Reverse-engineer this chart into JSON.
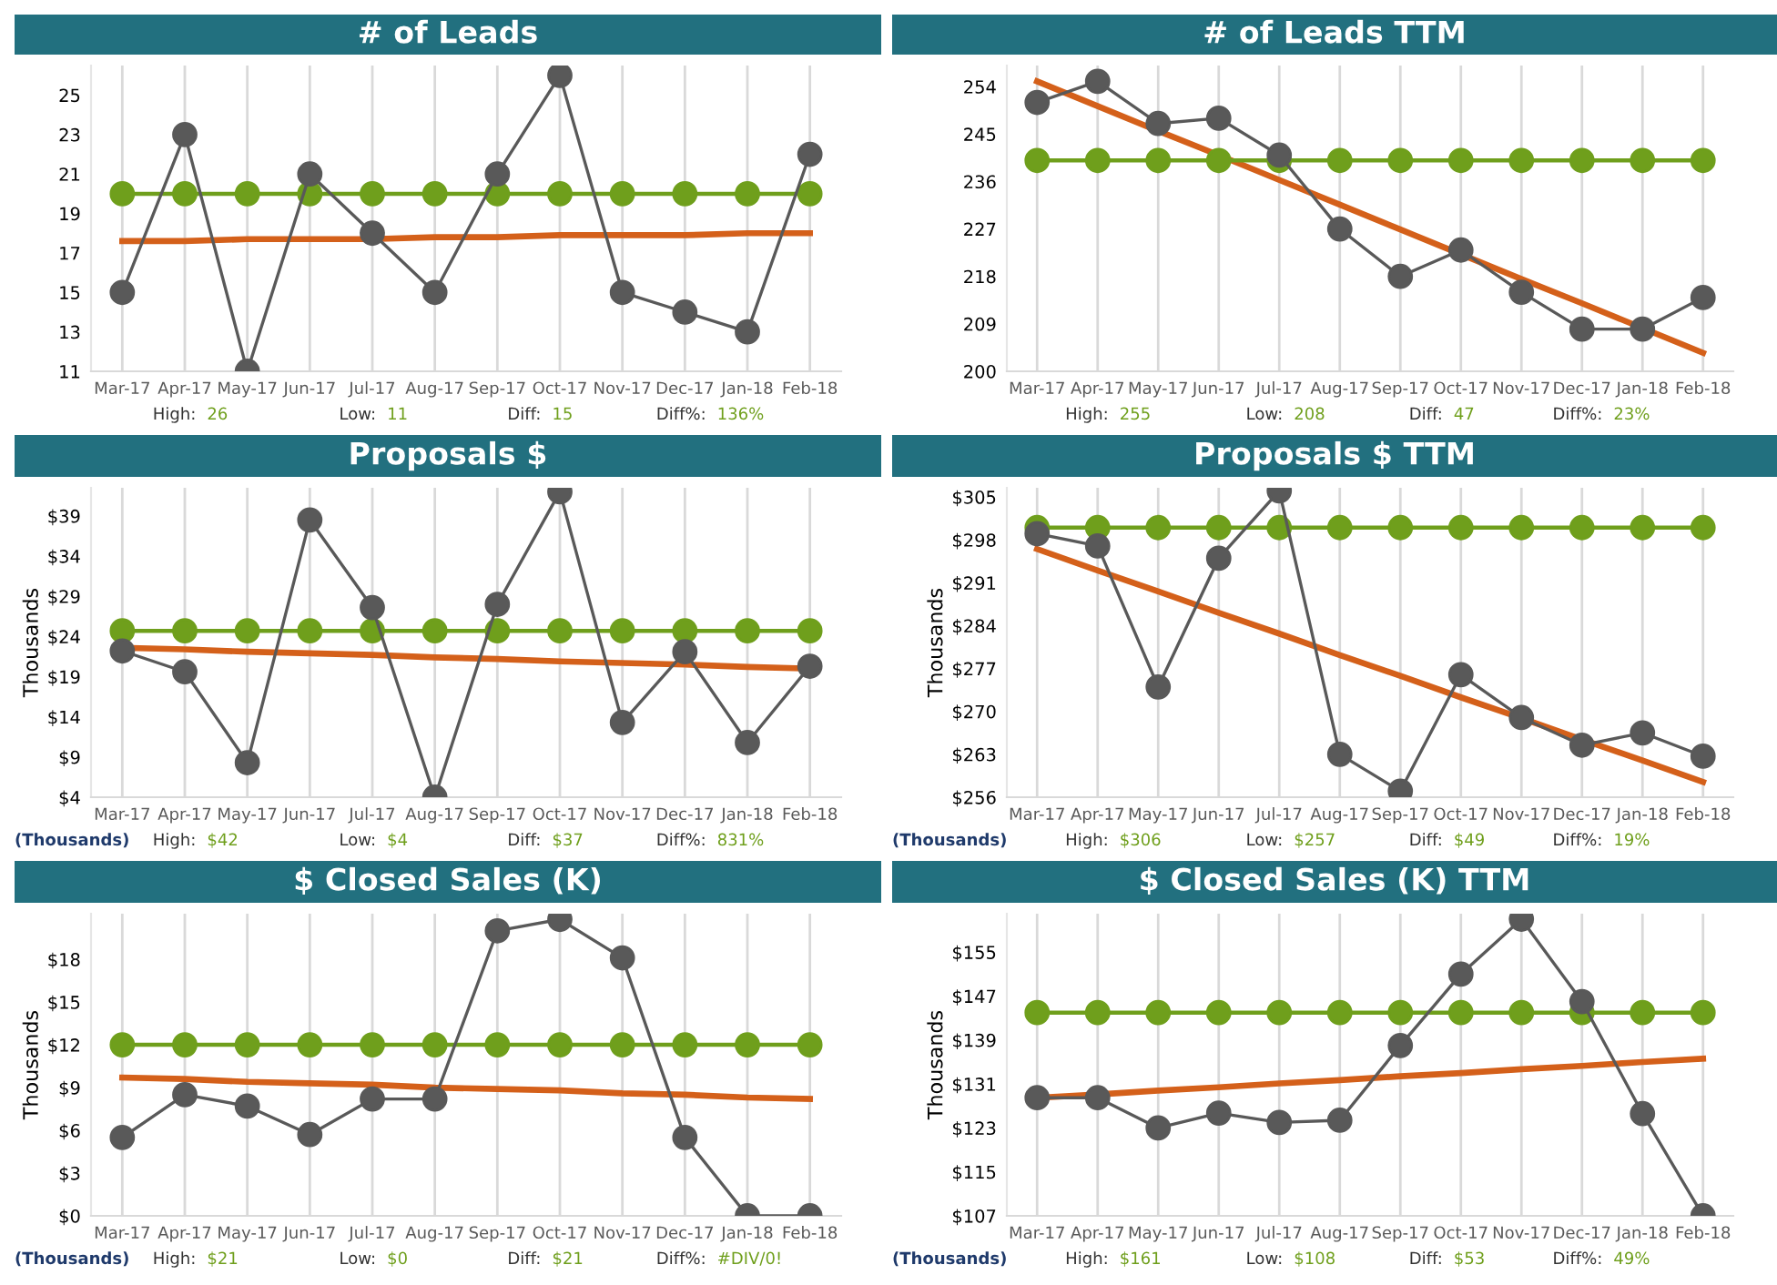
{
  "chart_data": [
    {
      "type": "line",
      "title": "# of Leads",
      "categories": [
        "Mar-17",
        "Apr-17",
        "May-17",
        "Jun-17",
        "Jul-17",
        "Aug-17",
        "Sep-17",
        "Oct-17",
        "Nov-17",
        "Dec-17",
        "Jan-18",
        "Feb-18"
      ],
      "series": [
        {
          "color": "#595959",
          "marker": "circle",
          "values": [
            15,
            23,
            11,
            21,
            18,
            15,
            21,
            26,
            15,
            14,
            13,
            22
          ]
        },
        {
          "color": "#6f9f1c",
          "marker": "circle",
          "values": [
            20,
            20,
            20,
            20,
            20,
            20,
            20,
            20,
            20,
            20,
            20,
            20
          ]
        },
        {
          "type": "line",
          "color": "#d4601a",
          "marker": "none",
          "values": [
            17.6,
            17.6,
            17.7,
            17.7,
            17.7,
            17.8,
            17.8,
            17.9,
            17.9,
            17.9,
            18.0,
            18.0
          ]
        }
      ],
      "ylim": [
        11,
        26.5
      ],
      "yticks": [
        11,
        13,
        15,
        17,
        19,
        21,
        23,
        25
      ],
      "grid": "x",
      "annotations": [
        "High: 26",
        "Low: 11",
        "Diff: 15",
        "Diff%: 136%"
      ]
    },
    {
      "type": "line",
      "title": "# of Leads TTM",
      "categories": [
        "Mar-17",
        "Apr-17",
        "May-17",
        "Jun-17",
        "Jul-17",
        "Aug-17",
        "Sep-17",
        "Oct-17",
        "Nov-17",
        "Dec-17",
        "Jan-18",
        "Feb-18"
      ],
      "series": [
        {
          "color": "#595959",
          "marker": "circle",
          "values": [
            251,
            255,
            247,
            248,
            241,
            227,
            218,
            223,
            215,
            208,
            208,
            214
          ]
        },
        {
          "color": "#6f9f1c",
          "marker": "circle",
          "values": [
            240,
            240,
            240,
            240,
            240,
            240,
            240,
            240,
            240,
            240,
            240,
            240
          ]
        },
        {
          "type": "line",
          "color": "#d4601a",
          "marker": "none",
          "values": [
            255,
            250.3,
            245.6,
            241,
            236.3,
            231.6,
            226.9,
            222.2,
            217.5,
            212.9,
            208.2,
            203.5
          ]
        }
      ],
      "ylim": [
        200,
        258
      ],
      "yticks": [
        200,
        209,
        218,
        227,
        236,
        245,
        254
      ],
      "grid": "x",
      "annotations": [
        "High: 255",
        "Low: 208",
        "Diff: 47",
        "Diff%: 23%"
      ]
    },
    {
      "type": "line",
      "title": "Proposals $",
      "ylabel": "Thousands",
      "categories": [
        "Mar-17",
        "Apr-17",
        "May-17",
        "Jun-17",
        "Jul-17",
        "Aug-17",
        "Sep-17",
        "Oct-17",
        "Nov-17",
        "Dec-17",
        "Jan-18",
        "Feb-18"
      ],
      "series": [
        {
          "color": "#595959",
          "marker": "circle",
          "values": [
            22.2,
            19.6,
            8.3,
            38.5,
            27.6,
            4,
            28,
            42,
            13.3,
            22.1,
            10.8,
            20.3
          ]
        },
        {
          "color": "#6f9f1c",
          "marker": "circle",
          "values": [
            24.7,
            24.7,
            24.7,
            24.7,
            24.7,
            24.7,
            24.7,
            24.7,
            24.7,
            24.7,
            24.7,
            24.7
          ]
        },
        {
          "type": "line",
          "color": "#d4601a",
          "marker": "none",
          "values": [
            22.6,
            22.4,
            22.1,
            21.9,
            21.7,
            21.4,
            21.2,
            20.9,
            20.7,
            20.5,
            20.2,
            20.0
          ]
        }
      ],
      "ylim": [
        4,
        42.5
      ],
      "yticks": [
        {
          "value": 4,
          "label": "$4"
        },
        {
          "value": 9,
          "label": "$9"
        },
        {
          "value": 14,
          "label": "$14"
        },
        {
          "value": 19,
          "label": "$19"
        },
        {
          "value": 24,
          "label": "$24"
        },
        {
          "value": 29,
          "label": "$29"
        },
        {
          "value": 34,
          "label": "$34"
        },
        {
          "value": 39,
          "label": "$39"
        }
      ],
      "grid": "x",
      "annotations": [
        "(Thousands)",
        "High: $42",
        "Low: $4",
        "Diff: $37",
        "Diff%: 831%"
      ]
    },
    {
      "type": "line",
      "title": "Proposals $ TTM",
      "ylabel": "Thousands",
      "categories": [
        "Mar-17",
        "Apr-17",
        "May-17",
        "Jun-17",
        "Jul-17",
        "Aug-17",
        "Sep-17",
        "Oct-17",
        "Nov-17",
        "Dec-17",
        "Jan-18",
        "Feb-18"
      ],
      "series": [
        {
          "color": "#595959",
          "marker": "circle",
          "values": [
            299,
            297,
            274,
            295,
            306,
            263,
            257,
            276,
            269,
            264.5,
            266.5,
            262.7
          ]
        },
        {
          "color": "#6f9f1c",
          "marker": "circle",
          "values": [
            300,
            300,
            300,
            300,
            300,
            300,
            300,
            300,
            300,
            300,
            300,
            300
          ]
        },
        {
          "type": "line",
          "color": "#d4601a",
          "marker": "none",
          "values": [
            296.5,
            293,
            289.6,
            286.1,
            282.7,
            279.2,
            275.8,
            272.3,
            268.9,
            265.4,
            262,
            258.5
          ]
        }
      ],
      "ylim": [
        256,
        306.5
      ],
      "yticks": [
        {
          "value": 256,
          "label": "$256"
        },
        {
          "value": 263,
          "label": "$263"
        },
        {
          "value": 270,
          "label": "$270"
        },
        {
          "value": 277,
          "label": "$277"
        },
        {
          "value": 284,
          "label": "$284"
        },
        {
          "value": 291,
          "label": "$291"
        },
        {
          "value": 298,
          "label": "$298"
        },
        {
          "value": 305,
          "label": "$305"
        }
      ],
      "grid": "x",
      "annotations": [
        "(Thousands)",
        "High: $306",
        "Low: $257",
        "Diff: $49",
        "Diff%: 19%"
      ]
    },
    {
      "type": "line",
      "title": "$ Closed Sales (K)",
      "ylabel": "Thousands",
      "categories": [
        "Mar-17",
        "Apr-17",
        "May-17",
        "Jun-17",
        "Jul-17",
        "Aug-17",
        "Sep-17",
        "Oct-17",
        "Nov-17",
        "Dec-17",
        "Jan-18",
        "Feb-18"
      ],
      "series": [
        {
          "color": "#595959",
          "marker": "circle",
          "values": [
            5.5,
            8.5,
            7.7,
            5.7,
            8.2,
            8.2,
            20,
            20.8,
            18.1,
            5.5,
            0,
            0
          ]
        },
        {
          "color": "#6f9f1c",
          "marker": "circle",
          "values": [
            12,
            12,
            12,
            12,
            12,
            12,
            12,
            12,
            12,
            12,
            12,
            12
          ]
        },
        {
          "type": "line",
          "color": "#d4601a",
          "marker": "none",
          "values": [
            9.7,
            9.6,
            9.4,
            9.3,
            9.2,
            9.0,
            8.9,
            8.8,
            8.6,
            8.5,
            8.3,
            8.2
          ]
        }
      ],
      "ylim": [
        0,
        21.2
      ],
      "yticks": [
        {
          "value": 0,
          "label": "$0"
        },
        {
          "value": 3,
          "label": "$3"
        },
        {
          "value": 6,
          "label": "$6"
        },
        {
          "value": 9,
          "label": "$9"
        },
        {
          "value": 12,
          "label": "$12"
        },
        {
          "value": 15,
          "label": "$15"
        },
        {
          "value": 18,
          "label": "$18"
        }
      ],
      "grid": "x",
      "annotations": [
        "(Thousands)",
        "High: $21",
        "Low: $0",
        "Diff: $21",
        "Diff%: #DIV/0!"
      ]
    },
    {
      "type": "line",
      "title": "$ Closed Sales (K) TTM",
      "ylabel": "Thousands",
      "categories": [
        "Mar-17",
        "Apr-17",
        "May-17",
        "Jun-17",
        "Jul-17",
        "Aug-17",
        "Sep-17",
        "Oct-17",
        "Nov-17",
        "Dec-17",
        "Jan-18",
        "Feb-18"
      ],
      "series": [
        {
          "color": "#595959",
          "marker": "circle",
          "values": [
            128.5,
            128.5,
            123,
            125.7,
            124,
            124.4,
            138,
            151,
            161,
            146,
            125.6,
            107
          ]
        },
        {
          "color": "#6f9f1c",
          "marker": "circle",
          "values": [
            144,
            144,
            144,
            144,
            144,
            144,
            144,
            144,
            144,
            144,
            144,
            144
          ]
        },
        {
          "type": "line",
          "color": "#d4601a",
          "marker": "none",
          "values": [
            128.5,
            129.1,
            129.8,
            130.4,
            131.1,
            131.7,
            132.4,
            133,
            133.7,
            134.3,
            135.0,
            135.6
          ]
        }
      ],
      "ylim": [
        107,
        162
      ],
      "yticks": [
        {
          "value": 107,
          "label": "$107"
        },
        {
          "value": 115,
          "label": "$115"
        },
        {
          "value": 123,
          "label": "$123"
        },
        {
          "value": 131,
          "label": "$131"
        },
        {
          "value": 139,
          "label": "$139"
        },
        {
          "value": 147,
          "label": "$147"
        },
        {
          "value": 155,
          "label": "$155"
        }
      ],
      "grid": "x",
      "annotations": [
        "(Thousands)",
        "High: $161",
        "Low: $108",
        "Diff: $53",
        "Diff%: 49%"
      ]
    }
  ]
}
